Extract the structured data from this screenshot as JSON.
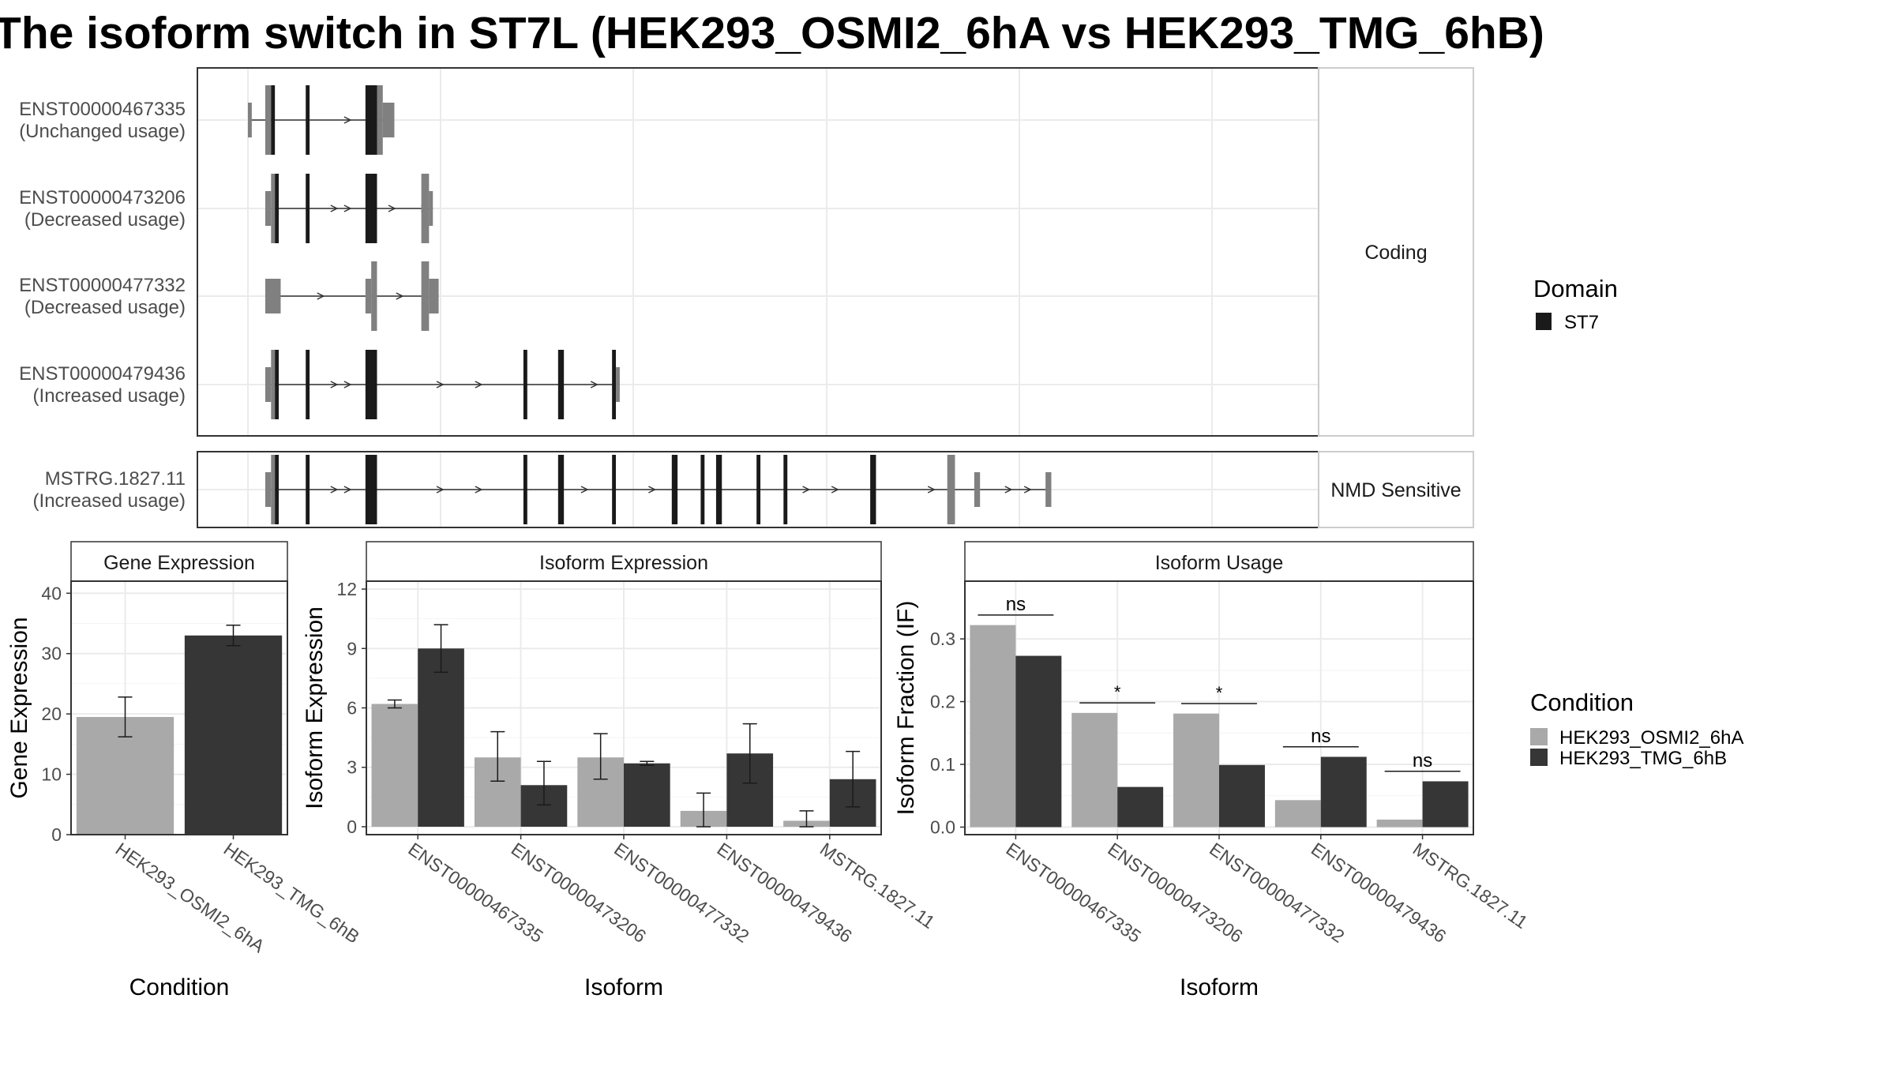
{
  "title": "The isoform switch in ST7L (HEK293_OSMI2_6hA vs HEK293_TMG_6hB)",
  "structure": {
    "panels": [
      {
        "label": "Coding",
        "transcripts": [
          {
            "id": "ENST00000467335",
            "usage": "(Unchanged usage)",
            "exons": [
              [
                "nc",
                0,
                2,
                "thin"
              ],
              [
                "nc",
                9,
                12,
                "tall"
              ],
              [
                "d",
                12,
                14,
                "tall"
              ],
              [
                "d",
                30,
                32,
                "tall"
              ],
              [
                "d",
                61,
                67,
                "tall"
              ],
              [
                "nc",
                67,
                70,
                "tall"
              ],
              [
                "nc",
                70,
                76,
                "thin"
              ]
            ],
            "arrows": [
              52
            ]
          },
          {
            "id": "ENST00000473206",
            "usage": "(Decreased usage)",
            "exons": [
              [
                "nc",
                9,
                12,
                "thin"
              ],
              [
                "nc",
                12,
                14,
                "tall"
              ],
              [
                "d",
                14,
                16,
                "tall"
              ],
              [
                "d",
                30,
                32,
                "tall"
              ],
              [
                "d",
                61,
                67,
                "tall"
              ],
              [
                "nc",
                90,
                94,
                "tall"
              ],
              [
                "nc",
                94,
                96,
                "thin"
              ]
            ],
            "arrows": [
              45,
              52,
              75,
              92
            ]
          },
          {
            "id": "ENST00000477332",
            "usage": "(Decreased usage)",
            "exons": [
              [
                "nc",
                9,
                17,
                "thin"
              ],
              [
                "nc",
                61,
                64,
                "thin"
              ],
              [
                "nc",
                64,
                67,
                "tall"
              ],
              [
                "nc",
                90,
                94,
                "tall"
              ],
              [
                "nc",
                94,
                99,
                "thin"
              ]
            ],
            "arrows": [
              38,
              79
            ]
          },
          {
            "id": "ENST00000479436",
            "usage": "(Increased usage)",
            "exons": [
              [
                "nc",
                9,
                12,
                "thin"
              ],
              [
                "nc",
                12,
                14,
                "tall"
              ],
              [
                "d",
                14,
                16,
                "tall"
              ],
              [
                "d",
                30,
                32,
                "tall"
              ],
              [
                "d",
                61,
                67,
                "tall"
              ],
              [
                "d",
                143,
                145,
                "tall"
              ],
              [
                "d",
                161,
                164,
                "tall"
              ],
              [
                "d",
                189,
                191,
                "tall"
              ],
              [
                "nc",
                191,
                193,
                "thin"
              ]
            ],
            "arrows": [
              45,
              52,
              100,
              120,
              180
            ]
          }
        ]
      },
      {
        "label": "NMD Sensitive",
        "transcripts": [
          {
            "id": "MSTRG.1827.11",
            "usage": "(Increased usage)",
            "exons": [
              [
                "nc",
                9,
                12,
                "thin"
              ],
              [
                "nc",
                12,
                14,
                "tall"
              ],
              [
                "d",
                14,
                16,
                "tall"
              ],
              [
                "d",
                30,
                32,
                "tall"
              ],
              [
                "d",
                61,
                67,
                "tall"
              ],
              [
                "d",
                143,
                145,
                "tall"
              ],
              [
                "d",
                161,
                164,
                "tall"
              ],
              [
                "d",
                189,
                191,
                "tall"
              ],
              [
                "d",
                220,
                223,
                "tall"
              ],
              [
                "d",
                235,
                237,
                "tall"
              ],
              [
                "d",
                243,
                246,
                "tall"
              ],
              [
                "d",
                264,
                266,
                "tall"
              ],
              [
                "d",
                278,
                280,
                "tall"
              ],
              [
                "d",
                323,
                326,
                "tall"
              ],
              [
                "nc",
                363,
                367,
                "tall"
              ],
              [
                "nc",
                377,
                380,
                "thin"
              ],
              [
                "nc",
                414,
                417,
                "thin"
              ]
            ],
            "arrows": [
              45,
              52,
              100,
              120,
              175,
              210,
              290,
              305,
              355,
              395,
              405
            ]
          }
        ]
      }
    ],
    "x_range": [
      0,
      430
    ]
  },
  "domain_legend": {
    "title": "Domain",
    "items": [
      {
        "label": "ST7",
        "color": "#1a1a1a"
      }
    ]
  },
  "condition_legend": {
    "title": "Condition",
    "items": [
      {
        "label": "HEK293_OSMI2_6hA",
        "color": "#a9a9a9"
      },
      {
        "label": "HEK293_TMG_6hB",
        "color": "#363636"
      }
    ]
  },
  "chart_data": [
    {
      "type": "bar",
      "title": "Gene Expression",
      "xlabel": "Condition",
      "ylabel": "Gene Expression",
      "ylim": [
        0,
        42
      ],
      "yticks": [
        0,
        10,
        20,
        30,
        40
      ],
      "categories": [
        "HEK293_OSMI2_6hA",
        "HEK293_TMG_6hB"
      ],
      "values": [
        19.5,
        33.0
      ],
      "errors": [
        [
          16.2,
          22.8
        ],
        [
          31.3,
          34.7
        ]
      ]
    },
    {
      "type": "bar",
      "title": "Isoform Expression",
      "xlabel": "Isoform",
      "ylabel": "Isoform Expression",
      "ylim": [
        -0.4,
        12.4
      ],
      "yticks": [
        0,
        3,
        6,
        9,
        12
      ],
      "categories": [
        "ENST00000467335",
        "ENST00000473206",
        "ENST00000477332",
        "ENST00000479436",
        "MSTRG.1827.11"
      ],
      "series": [
        {
          "name": "HEK293_OSMI2_6hA",
          "values": [
            6.2,
            3.5,
            3.5,
            0.8,
            0.3
          ],
          "errors": [
            [
              6.0,
              6.4
            ],
            [
              2.3,
              4.8
            ],
            [
              2.4,
              4.7
            ],
            [
              0.0,
              1.7
            ],
            [
              0.0,
              0.8
            ]
          ]
        },
        {
          "name": "HEK293_TMG_6hB",
          "values": [
            9.0,
            2.1,
            3.2,
            3.7,
            2.4
          ],
          "errors": [
            [
              7.8,
              10.2
            ],
            [
              1.1,
              3.3
            ],
            [
              3.1,
              3.3
            ],
            [
              2.2,
              5.2
            ],
            [
              1.0,
              3.8
            ]
          ]
        }
      ]
    },
    {
      "type": "bar",
      "title": "Isoform Usage",
      "xlabel": "Isoform",
      "ylabel": "Isoform Fraction (IF)",
      "ylim": [
        -0.012,
        0.392
      ],
      "yticks": [
        0.0,
        0.1,
        0.2,
        0.3
      ],
      "ytick_labels": [
        "0.0",
        "0.1",
        "0.2",
        "0.3"
      ],
      "categories": [
        "ENST00000467335",
        "ENST00000473206",
        "ENST00000477332",
        "ENST00000479436",
        "MSTRG.1827.11"
      ],
      "series": [
        {
          "name": "HEK293_OSMI2_6hA",
          "values": [
            0.322,
            0.182,
            0.181,
            0.043,
            0.012
          ]
        },
        {
          "name": "HEK293_TMG_6hB",
          "values": [
            0.273,
            0.064,
            0.099,
            0.112,
            0.073
          ]
        }
      ],
      "significance": [
        "ns",
        "*",
        "*",
        "ns",
        "ns"
      ],
      "significance_y": [
        0.338,
        0.198,
        0.197,
        0.128,
        0.089
      ]
    }
  ]
}
